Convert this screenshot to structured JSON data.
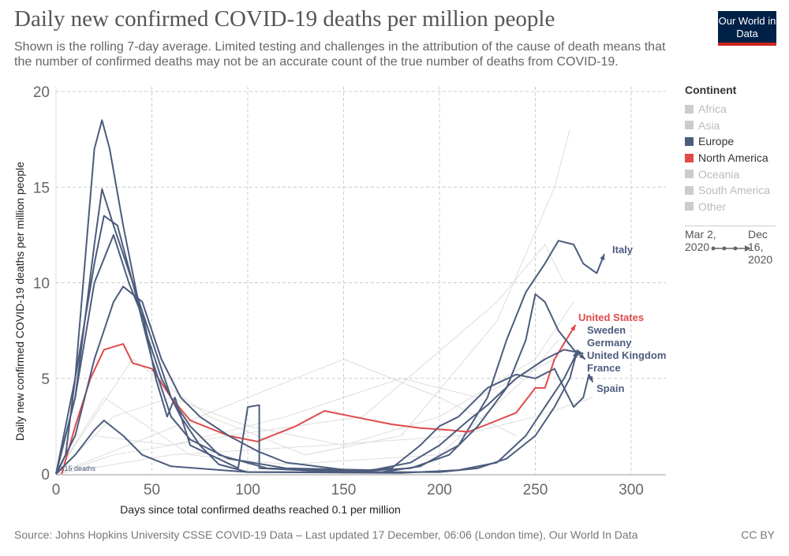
{
  "header": {
    "title": "Daily new confirmed COVID-19 deaths per million people",
    "subtitle": "Shown is the rolling 7-day average. Limited testing and challenges in the attribution of the cause of death means that the number of confirmed deaths may not be an accurate count of the true number of deaths from COVID-19.",
    "logo": "Our World in Data"
  },
  "legend": {
    "title": "Continent",
    "items": [
      {
        "label": "Africa",
        "active": false,
        "color": "#cccccc"
      },
      {
        "label": "Asia",
        "active": false,
        "color": "#cccccc"
      },
      {
        "label": "Europe",
        "active": true,
        "color": "#4c5c7d"
      },
      {
        "label": "North America",
        "active": true,
        "color": "#e04a4a"
      },
      {
        "label": "Oceania",
        "active": false,
        "color": "#cccccc"
      },
      {
        "label": "South America",
        "active": false,
        "color": "#cccccc"
      },
      {
        "label": "Other",
        "active": false,
        "color": "#cccccc"
      }
    ]
  },
  "timeline": {
    "start": "Mar 2, 2020",
    "end": "Dec 16, 2020"
  },
  "footer": {
    "source": "Source: Johns Hopkins University CSSE COVID-19 Data – Last updated 17 December, 06:06 (London time), Our World In Data",
    "license": "CC BY"
  },
  "chart_data": {
    "type": "line",
    "xlabel": "Days since total confirmed deaths reached 0.1 per million",
    "ylabel": "Daily new confirmed COVID-19 deaths per million people",
    "xlim": [
      0,
      318
    ],
    "ylim": [
      0,
      20
    ],
    "xticks": [
      0,
      50,
      100,
      150,
      200,
      250,
      300
    ],
    "yticks": [
      0,
      5,
      10,
      15,
      20
    ],
    "grid": true,
    "annotation": "0.15 deaths",
    "series": [
      {
        "name": "Italy",
        "color": "#4c5c7d",
        "points": [
          [
            0,
            0
          ],
          [
            10,
            5
          ],
          [
            20,
            11
          ],
          [
            25,
            13.5
          ],
          [
            32,
            13
          ],
          [
            40,
            10
          ],
          [
            50,
            7
          ],
          [
            60,
            4
          ],
          [
            70,
            2.5
          ],
          [
            85,
            1
          ],
          [
            110,
            0.3
          ],
          [
            170,
            0.1
          ],
          [
            190,
            0.4
          ],
          [
            210,
            1.5
          ],
          [
            225,
            4
          ],
          [
            235,
            7
          ],
          [
            245,
            9.5
          ],
          [
            255,
            11
          ],
          [
            262,
            12.2
          ],
          [
            270,
            12
          ],
          [
            275,
            11
          ],
          [
            282,
            10.5
          ],
          [
            286,
            11.5
          ]
        ]
      },
      {
        "name": "United States",
        "color": "#e04a4a",
        "points": [
          [
            3,
            0
          ],
          [
            10,
            2.5
          ],
          [
            18,
            5
          ],
          [
            25,
            6.5
          ],
          [
            35,
            6.8
          ],
          [
            40,
            5.8
          ],
          [
            50,
            5.5
          ],
          [
            60,
            4
          ],
          [
            70,
            2.8
          ],
          [
            90,
            2
          ],
          [
            105,
            1.7
          ],
          [
            115,
            2.1
          ],
          [
            125,
            2.5
          ],
          [
            140,
            3.3
          ],
          [
            155,
            3
          ],
          [
            175,
            2.6
          ],
          [
            190,
            2.4
          ],
          [
            205,
            2.3
          ],
          [
            215,
            2.2
          ],
          [
            225,
            2.6
          ],
          [
            240,
            3.2
          ],
          [
            250,
            4.5
          ],
          [
            255,
            4.5
          ],
          [
            260,
            6
          ],
          [
            266,
            7
          ],
          [
            271,
            7.8
          ]
        ]
      },
      {
        "name": "Sweden",
        "color": "#4c5c7d",
        "points": [
          [
            0,
            0
          ],
          [
            10,
            2
          ],
          [
            20,
            6
          ],
          [
            30,
            9
          ],
          [
            35,
            9.8
          ],
          [
            45,
            9
          ],
          [
            55,
            6
          ],
          [
            65,
            4
          ],
          [
            75,
            3
          ],
          [
            90,
            2
          ],
          [
            105,
            1.2
          ],
          [
            120,
            0.6
          ],
          [
            160,
            0.1
          ],
          [
            200,
            0.1
          ],
          [
            220,
            0.3
          ],
          [
            235,
            0.8
          ],
          [
            250,
            2
          ],
          [
            260,
            3.5
          ],
          [
            268,
            5
          ],
          [
            272,
            6.5
          ]
        ]
      },
      {
        "name": "Germany",
        "color": "#4c5c7d",
        "points": [
          [
            0,
            0
          ],
          [
            10,
            1
          ],
          [
            20,
            2.3
          ],
          [
            25,
            2.8
          ],
          [
            35,
            2
          ],
          [
            45,
            1
          ],
          [
            60,
            0.4
          ],
          [
            100,
            0.1
          ],
          [
            180,
            0.05
          ],
          [
            210,
            0.2
          ],
          [
            230,
            0.6
          ],
          [
            245,
            2
          ],
          [
            255,
            3.5
          ],
          [
            265,
            5
          ],
          [
            272,
            6.4
          ]
        ]
      },
      {
        "name": "United Kingdom",
        "color": "#4c5c7d",
        "points": [
          [
            0,
            0
          ],
          [
            10,
            4
          ],
          [
            20,
            12
          ],
          [
            24,
            14.9
          ],
          [
            30,
            13
          ],
          [
            40,
            10
          ],
          [
            50,
            6
          ],
          [
            60,
            3
          ],
          [
            70,
            1.8
          ],
          [
            90,
            0.8
          ],
          [
            120,
            0.3
          ],
          [
            165,
            0.2
          ],
          [
            185,
            0.6
          ],
          [
            200,
            1.5
          ],
          [
            215,
            2.8
          ],
          [
            225,
            3.6
          ],
          [
            240,
            5
          ],
          [
            255,
            6
          ],
          [
            265,
            6.5
          ],
          [
            275,
            6.3
          ]
        ]
      },
      {
        "name": "France",
        "color": "#4c5c7d",
        "points": [
          [
            0,
            0
          ],
          [
            10,
            4
          ],
          [
            20,
            10
          ],
          [
            30,
            12.5
          ],
          [
            38,
            10
          ],
          [
            46,
            8
          ],
          [
            52,
            5
          ],
          [
            58,
            3
          ],
          [
            62,
            4
          ],
          [
            70,
            1.5
          ],
          [
            95,
            0.3
          ],
          [
            100,
            3.5
          ],
          [
            106,
            3.6
          ],
          [
            106,
            0.3
          ],
          [
            150,
            0.1
          ],
          [
            185,
            0.3
          ],
          [
            205,
            1
          ],
          [
            220,
            2.5
          ],
          [
            235,
            4.5
          ],
          [
            245,
            7
          ],
          [
            250,
            9.4
          ],
          [
            255,
            9
          ],
          [
            262,
            7.5
          ],
          [
            270,
            6.5
          ],
          [
            276,
            6
          ]
        ]
      },
      {
        "name": "Spain",
        "color": "#4c5c7d",
        "points": [
          [
            0,
            0
          ],
          [
            5,
            1
          ],
          [
            10,
            5
          ],
          [
            15,
            11
          ],
          [
            20,
            17
          ],
          [
            24,
            18.5
          ],
          [
            28,
            17
          ],
          [
            35,
            13
          ],
          [
            45,
            8
          ],
          [
            55,
            5
          ],
          [
            65,
            3
          ],
          [
            75,
            1.5
          ],
          [
            85,
            0.5
          ],
          [
            100,
            0.1
          ],
          [
            150,
            0.1
          ],
          [
            175,
            0.3
          ],
          [
            190,
            1.5
          ],
          [
            200,
            2.5
          ],
          [
            210,
            3
          ],
          [
            225,
            4.5
          ],
          [
            240,
            5.2
          ],
          [
            250,
            5
          ],
          [
            260,
            5.5
          ],
          [
            265,
            4.5
          ],
          [
            270,
            3.5
          ],
          [
            275,
            4
          ],
          [
            278,
            5.2
          ],
          [
            280,
            4.8
          ]
        ]
      }
    ],
    "background_series": [
      [
        [
          0,
          0
        ],
        [
          30,
          3
        ],
        [
          60,
          4
        ],
        [
          100,
          2.5
        ],
        [
          150,
          1.5
        ],
        [
          200,
          3
        ],
        [
          250,
          6
        ],
        [
          270,
          9
        ]
      ],
      [
        [
          0,
          0
        ],
        [
          40,
          6
        ],
        [
          80,
          3
        ],
        [
          130,
          1
        ],
        [
          180,
          2
        ],
        [
          230,
          8
        ],
        [
          260,
          15
        ],
        [
          268,
          18
        ]
      ],
      [
        [
          0,
          0
        ],
        [
          20,
          2
        ],
        [
          60,
          1.5
        ],
        [
          120,
          3
        ],
        [
          180,
          5
        ],
        [
          220,
          4
        ],
        [
          260,
          6
        ]
      ],
      [
        [
          0,
          0
        ],
        [
          50,
          2
        ],
        [
          100,
          4
        ],
        [
          150,
          6
        ],
        [
          200,
          4
        ],
        [
          240,
          2
        ]
      ],
      [
        [
          0,
          0
        ],
        [
          30,
          1
        ],
        [
          90,
          2
        ],
        [
          160,
          3
        ],
        [
          230,
          9
        ],
        [
          255,
          12
        ],
        [
          265,
          10
        ]
      ],
      [
        [
          0,
          0
        ],
        [
          60,
          1
        ],
        [
          140,
          1.5
        ],
        [
          210,
          2
        ],
        [
          250,
          3
        ],
        [
          280,
          4
        ]
      ],
      [
        [
          0,
          0
        ],
        [
          25,
          4
        ],
        [
          70,
          1
        ],
        [
          120,
          0.5
        ],
        [
          200,
          1
        ],
        [
          245,
          5
        ],
        [
          262,
          7
        ]
      ]
    ]
  }
}
